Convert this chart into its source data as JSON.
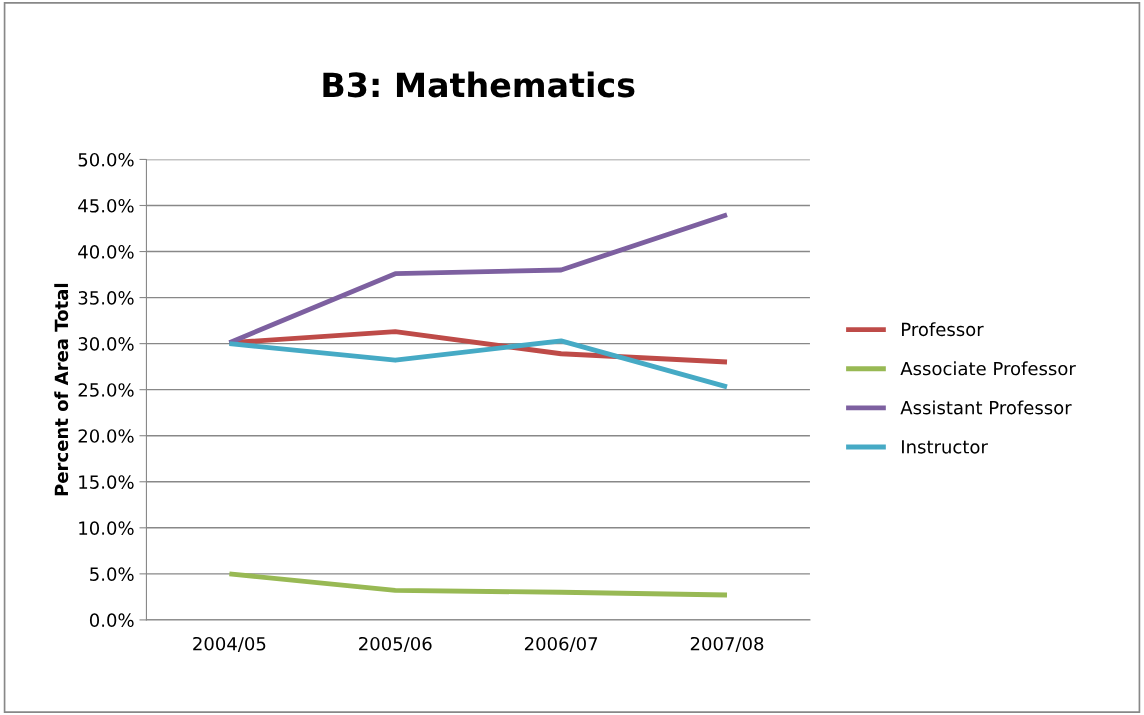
{
  "chart_data": {
    "type": "line",
    "title": "B3: Mathematics",
    "ylabel": "Percent of Area Total",
    "categories": [
      "2004/05",
      "2005/06",
      "2006/07",
      "2007/08"
    ],
    "series": [
      {
        "name": "Professor",
        "color": "#be4b48",
        "values": [
          30.1,
          31.3,
          28.9,
          28.0
        ]
      },
      {
        "name": "Associate Professor",
        "color": "#98b954",
        "values": [
          5.0,
          3.2,
          3.0,
          2.7
        ]
      },
      {
        "name": "Assistant Professor",
        "color": "#7d60a0",
        "values": [
          30.1,
          37.6,
          38.0,
          44.0
        ]
      },
      {
        "name": "Instructor",
        "color": "#46aac5",
        "values": [
          30.0,
          28.2,
          30.3,
          25.3
        ]
      }
    ],
    "ylim": [
      0,
      50
    ],
    "yticks": [
      {
        "value": 0,
        "label": "0.0%"
      },
      {
        "value": 5,
        "label": "5.0%"
      },
      {
        "value": 10,
        "label": "10.0%"
      },
      {
        "value": 15,
        "label": "15.0%"
      },
      {
        "value": 20,
        "label": "20.0%"
      },
      {
        "value": 25,
        "label": "25.0%"
      },
      {
        "value": 30,
        "label": "30.0%"
      },
      {
        "value": 35,
        "label": "35.0%"
      },
      {
        "value": 40,
        "label": "40.0%"
      },
      {
        "value": 45,
        "label": "45.0%"
      },
      {
        "value": 50,
        "label": "50.0%"
      }
    ],
    "grid": "y",
    "legend": "right",
    "marker": "none",
    "line_style": "solid"
  }
}
